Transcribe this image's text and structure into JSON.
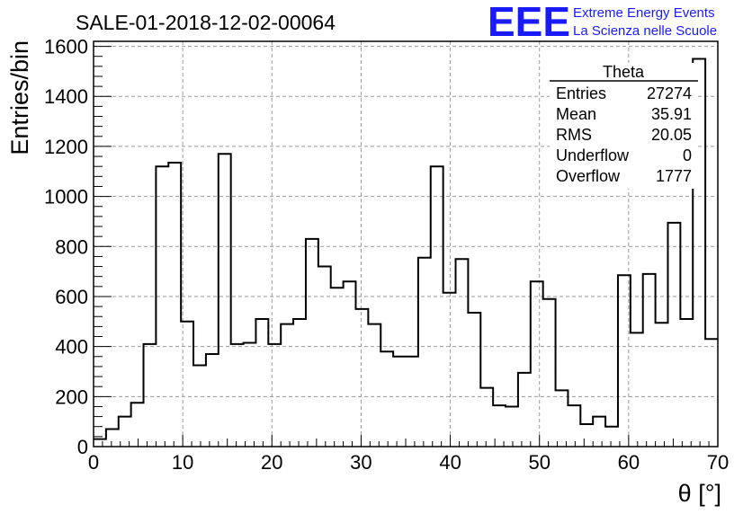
{
  "chart_data": {
    "type": "bar",
    "title": "SALE-01-2018-12-02-00064",
    "xlabel": "θ [°]",
    "ylabel": "Entries/bin",
    "xlim": [
      0,
      70
    ],
    "ylim": [
      0,
      1620
    ],
    "x_ticks": [
      0,
      10,
      20,
      30,
      40,
      50,
      60,
      70
    ],
    "y_ticks": [
      0,
      200,
      400,
      600,
      800,
      1000,
      1200,
      1400,
      1600
    ],
    "grid": true,
    "bin_width": 1.4,
    "values": [
      30,
      70,
      120,
      175,
      410,
      1120,
      1135,
      500,
      325,
      370,
      1170,
      410,
      415,
      510,
      410,
      490,
      510,
      830,
      720,
      635,
      660,
      550,
      490,
      380,
      360,
      360,
      755,
      1120,
      615,
      750,
      535,
      235,
      165,
      160,
      295,
      660,
      590,
      225,
      165,
      90,
      120,
      80,
      685,
      455,
      690,
      495,
      895,
      510,
      1550,
      430
    ],
    "series_name": "Theta"
  },
  "stats_box": {
    "title": "Theta",
    "rows": [
      {
        "label": "Entries",
        "value": "27274"
      },
      {
        "label": "Mean",
        "value": "35.91"
      },
      {
        "label": "RMS",
        "value": "20.05"
      },
      {
        "label": "Underflow",
        "value": "0"
      },
      {
        "label": "Overflow",
        "value": "1777"
      }
    ]
  },
  "logo": {
    "main": "EEE",
    "line1": "Extreme Energy Events",
    "line2": "La Scienza nelle Scuole"
  },
  "colors": {
    "histogram_line": "#000000",
    "grid": "#9a9a9a",
    "logo": "#1a1aff"
  }
}
